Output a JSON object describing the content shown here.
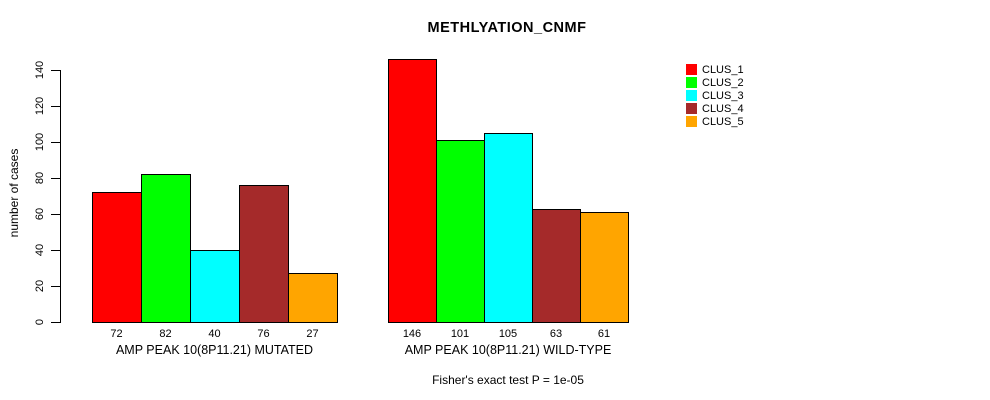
{
  "figure": {
    "background": "#FFFFFF",
    "text_color": "#000000"
  },
  "chart_data": {
    "type": "bar",
    "title": "METHLYATION_CNMF",
    "xlabel": "",
    "ylabel": "number of cases",
    "ylim": [
      0,
      140
    ],
    "yticks": [
      0,
      20,
      40,
      60,
      80,
      100,
      120,
      140
    ],
    "grid": false,
    "bar_border_color": "#000000",
    "legend": {
      "position": "top-right",
      "entries": [
        {
          "label": "CLUS_1",
          "color": "#FF0000"
        },
        {
          "label": "CLUS_2",
          "color": "#00FF00"
        },
        {
          "label": "CLUS_3",
          "color": "#00FFFF"
        },
        {
          "label": "CLUS_4",
          "color": "#A52A2A"
        },
        {
          "label": "CLUS_5",
          "color": "#FFA500"
        }
      ]
    },
    "categories": [
      "AMP PEAK 10(8P11.21) MUTATED",
      "AMP PEAK 10(8P11.21) WILD-TYPE"
    ],
    "series": [
      {
        "name": "CLUS_1",
        "color": "#FF0000",
        "values": [
          72,
          146
        ]
      },
      {
        "name": "CLUS_2",
        "color": "#00FF00",
        "values": [
          82,
          101
        ]
      },
      {
        "name": "CLUS_3",
        "color": "#00FFFF",
        "values": [
          40,
          105
        ]
      },
      {
        "name": "CLUS_4",
        "color": "#A52A2A",
        "values": [
          76,
          63
        ]
      },
      {
        "name": "CLUS_5",
        "color": "#FFA500",
        "values": [
          27,
          61
        ]
      }
    ],
    "groups": [
      {
        "label": "AMP PEAK 10(8P11.21) MUTATED",
        "values": [
          72,
          82,
          40,
          76,
          27
        ]
      },
      {
        "label": "AMP PEAK 10(8P11.21) WILD-TYPE",
        "values": [
          146,
          101,
          105,
          63,
          61
        ]
      }
    ],
    "bar_value_labels_shown": true,
    "footnote": "Fisher's exact test P = 1e-05"
  }
}
